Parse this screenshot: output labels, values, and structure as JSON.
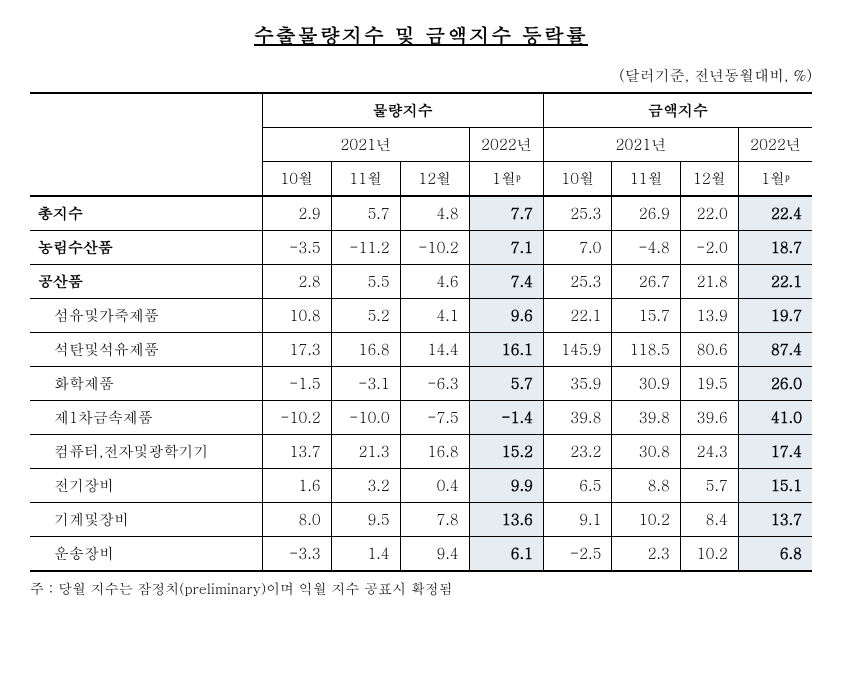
{
  "title": "수출물량지수 및 금액지수 등락률",
  "subtitle": "(달러기준, 전년동월대비, %)",
  "headers": {
    "group1": "물량지수",
    "group2": "금액지수",
    "year2021": "2021년",
    "year2022": "2022년",
    "m10": "10월",
    "m11": "11월",
    "m12": "12월",
    "m1p": "1월ᵖ"
  },
  "rows": [
    {
      "label": "총지수",
      "bold": true,
      "indent": false,
      "v": [
        "2.9",
        "5.7",
        "4.8",
        "7.7",
        "25.3",
        "26.9",
        "22.0",
        "22.4"
      ]
    },
    {
      "label": "농림수산품",
      "bold": true,
      "indent": false,
      "v": [
        "-3.5",
        "-11.2",
        "-10.2",
        "7.1",
        "7.0",
        "-4.8",
        "-2.0",
        "18.7"
      ]
    },
    {
      "label": "공산품",
      "bold": true,
      "indent": false,
      "v": [
        "2.8",
        "5.5",
        "4.6",
        "7.4",
        "25.3",
        "26.7",
        "21.8",
        "22.1"
      ]
    },
    {
      "label": "섬유및가죽제품",
      "bold": false,
      "indent": true,
      "v": [
        "10.8",
        "5.2",
        "4.1",
        "9.6",
        "22.1",
        "15.7",
        "13.9",
        "19.7"
      ]
    },
    {
      "label": "석탄및석유제품",
      "bold": false,
      "indent": true,
      "v": [
        "17.3",
        "16.8",
        "14.4",
        "16.1",
        "145.9",
        "118.5",
        "80.6",
        "87.4"
      ]
    },
    {
      "label": "화학제품",
      "bold": false,
      "indent": true,
      "v": [
        "-1.5",
        "-3.1",
        "-6.3",
        "5.7",
        "35.9",
        "30.9",
        "19.5",
        "26.0"
      ]
    },
    {
      "label": "제1차금속제품",
      "bold": false,
      "indent": true,
      "v": [
        "-10.2",
        "-10.0",
        "-7.5",
        "-1.4",
        "39.8",
        "39.8",
        "39.6",
        "41.0"
      ]
    },
    {
      "label": "컴퓨터,전자및광학기기",
      "bold": false,
      "indent": true,
      "v": [
        "13.7",
        "21.3",
        "16.8",
        "15.2",
        "23.2",
        "30.8",
        "24.3",
        "17.4"
      ]
    },
    {
      "label": "전기장비",
      "bold": false,
      "indent": true,
      "v": [
        "1.6",
        "3.2",
        "0.4",
        "9.9",
        "6.5",
        "8.8",
        "5.7",
        "15.1"
      ]
    },
    {
      "label": "기계및장비",
      "bold": false,
      "indent": true,
      "v": [
        "8.0",
        "9.5",
        "7.8",
        "13.6",
        "9.1",
        "10.2",
        "8.4",
        "13.7"
      ]
    },
    {
      "label": "운송장비",
      "bold": false,
      "indent": true,
      "v": [
        "-3.3",
        "1.4",
        "9.4",
        "6.1",
        "-2.5",
        "2.3",
        "10.2",
        "6.8"
      ]
    }
  ],
  "note": "주 : 당월 지수는 잠정치(preliminary)이며 익월 지수 공표시 확정됨",
  "style": {
    "highlight_bg": "#e5ecf2",
    "text_color": "#000000",
    "bg_color": "#ffffff"
  }
}
